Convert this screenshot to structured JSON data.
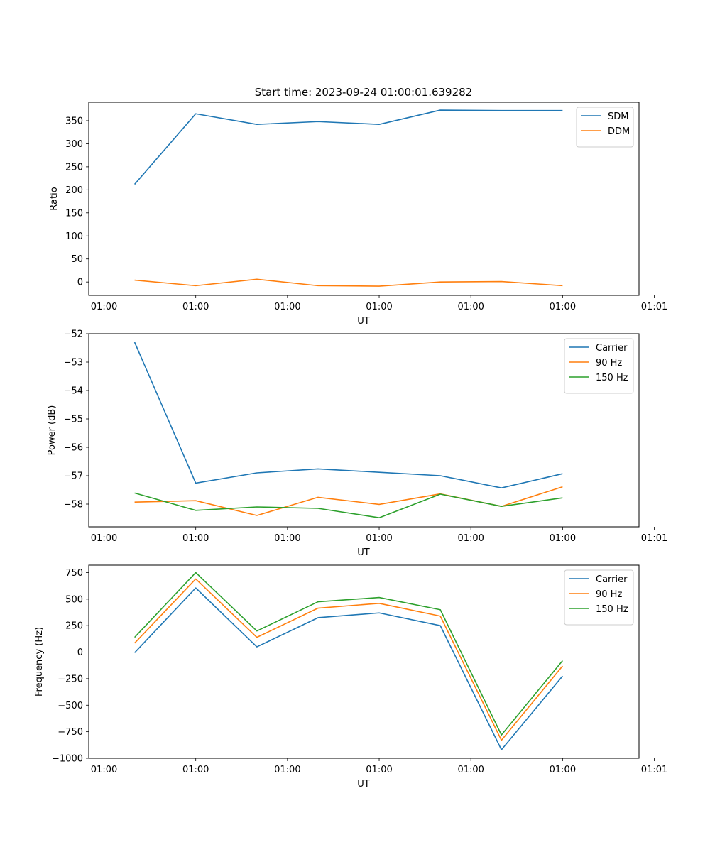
{
  "chart_data": [
    {
      "type": "line",
      "title": "Start time: 2023-09-24 01:00:01.639282",
      "xlabel": "UT",
      "ylabel": "Ratio",
      "x": [
        1,
        2,
        3,
        4,
        5,
        6,
        7,
        8
      ],
      "xlim": [
        0.25,
        9.25
      ],
      "x_ticks": [
        0.5,
        2.0,
        3.5,
        5.0,
        6.5,
        8.0,
        9.5
      ],
      "x_tick_labels": [
        "01:00",
        "01:00",
        "01:00",
        "01:00",
        "01:00",
        "01:00",
        "01:01"
      ],
      "ylim": [
        -29,
        390
      ],
      "y_ticks": [
        0,
        50,
        100,
        150,
        200,
        250,
        300,
        350
      ],
      "y_tick_labels": [
        "0",
        "50",
        "100",
        "150",
        "200",
        "250",
        "300",
        "350"
      ],
      "legend_position": "top-right",
      "grid": false,
      "series": [
        {
          "name": "SDM",
          "color": "#1f77b4",
          "values": [
            212,
            365,
            342,
            348,
            342,
            373,
            372,
            372
          ]
        },
        {
          "name": "DDM",
          "color": "#ff7f0e",
          "values": [
            4,
            -8,
            6,
            -8,
            -9,
            0,
            1,
            -8
          ]
        }
      ]
    },
    {
      "type": "line",
      "title": "",
      "xlabel": "UT",
      "ylabel": "Power (dB)",
      "x": [
        1,
        2,
        3,
        4,
        5,
        6,
        7,
        8
      ],
      "xlim": [
        0.25,
        9.25
      ],
      "x_ticks": [
        0.5,
        2.0,
        3.5,
        5.0,
        6.5,
        8.0,
        9.5
      ],
      "x_tick_labels": [
        "01:00",
        "01:00",
        "01:00",
        "01:00",
        "01:00",
        "01:00",
        "01:01"
      ],
      "ylim": [
        -58.8,
        -52.0
      ],
      "y_ticks": [
        -58,
        -57,
        -56,
        -55,
        -54,
        -53,
        -52
      ],
      "y_tick_labels": [
        "−58",
        "−57",
        "−56",
        "−55",
        "−54",
        "−53",
        "−52"
      ],
      "legend_position": "top-right",
      "grid": false,
      "series": [
        {
          "name": "Carrier",
          "color": "#1f77b4",
          "values": [
            -52.3,
            -57.26,
            -56.9,
            -56.76,
            -56.88,
            -57.0,
            -57.43,
            -56.93
          ]
        },
        {
          "name": "90 Hz",
          "color": "#ff7f0e",
          "values": [
            -57.93,
            -57.88,
            -58.4,
            -57.76,
            -58.01,
            -57.64,
            -58.08,
            -57.39
          ]
        },
        {
          "name": "150 Hz",
          "color": "#2ca02c",
          "values": [
            -57.61,
            -58.22,
            -58.1,
            -58.15,
            -58.48,
            -57.65,
            -58.08,
            -57.78
          ]
        }
      ]
    },
    {
      "type": "line",
      "title": "",
      "xlabel": "UT",
      "ylabel": "Frequency (Hz)",
      "x": [
        1,
        2,
        3,
        4,
        5,
        6,
        7,
        8
      ],
      "xlim": [
        0.25,
        9.25
      ],
      "x_ticks": [
        0.5,
        2.0,
        3.5,
        5.0,
        6.5,
        8.0,
        9.5
      ],
      "x_tick_labels": [
        "01:00",
        "01:00",
        "01:00",
        "01:00",
        "01:00",
        "01:00",
        "01:01"
      ],
      "ylim": [
        -1000,
        820
      ],
      "y_ticks": [
        -1000,
        -750,
        -500,
        -250,
        0,
        250,
        500,
        750
      ],
      "y_tick_labels": [
        "−1000",
        "−750",
        "−500",
        "−250",
        "0",
        "250",
        "500",
        "750"
      ],
      "legend_position": "top-right",
      "grid": false,
      "series": [
        {
          "name": "Carrier",
          "color": "#1f77b4",
          "values": [
            -5,
            605,
            50,
            325,
            370,
            250,
            -920,
            -225
          ]
        },
        {
          "name": "90 Hz",
          "color": "#ff7f0e",
          "values": [
            85,
            690,
            140,
            415,
            460,
            340,
            -830,
            -130
          ]
        },
        {
          "name": "150 Hz",
          "color": "#2ca02c",
          "values": [
            140,
            750,
            200,
            475,
            515,
            400,
            -780,
            -80
          ]
        }
      ]
    }
  ]
}
